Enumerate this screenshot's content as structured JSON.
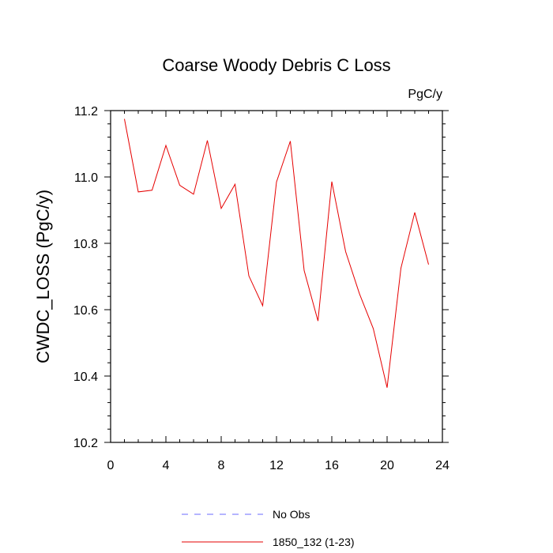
{
  "chart_data": {
    "type": "line",
    "title": "Coarse Woody Debris C Loss",
    "units_label": "PgC/y",
    "ylabel": "CWDC_LOSS  (PgC/y)",
    "xlabel": "",
    "xlim": [
      0,
      24
    ],
    "ylim": [
      10.2,
      11.2
    ],
    "x_ticks": [
      0,
      4,
      8,
      12,
      16,
      20,
      24
    ],
    "y_ticks": [
      10.2,
      10.4,
      10.6,
      10.8,
      11.0,
      11.2
    ],
    "x_tick_labels": [
      "0",
      "4",
      "8",
      "12",
      "16",
      "20",
      "24"
    ],
    "y_tick_labels": [
      "10.2",
      "10.4",
      "10.6",
      "10.8",
      "11.0",
      "11.2"
    ],
    "grid": false,
    "series": [
      {
        "name": "1850_132 (1-23)",
        "color": "#e60000",
        "style": "solid",
        "x": [
          1,
          2,
          3,
          4,
          5,
          6,
          7,
          8,
          9,
          10,
          11,
          12,
          13,
          14,
          15,
          16,
          17,
          18,
          19,
          20,
          21,
          22,
          23
        ],
        "values": [
          11.175,
          10.955,
          10.96,
          11.095,
          10.975,
          10.948,
          11.11,
          10.905,
          10.978,
          10.702,
          10.612,
          10.985,
          11.108,
          10.718,
          10.566,
          10.986,
          10.775,
          10.648,
          10.543,
          10.365,
          10.725,
          10.893,
          10.736
        ]
      }
    ],
    "legend": {
      "placement": "bottom-center",
      "entries": [
        {
          "label": "No Obs",
          "color": "#6b6bff",
          "style": "dashed"
        },
        {
          "label": "1850_132 (1-23)",
          "color": "#e60000",
          "style": "solid"
        }
      ]
    }
  }
}
